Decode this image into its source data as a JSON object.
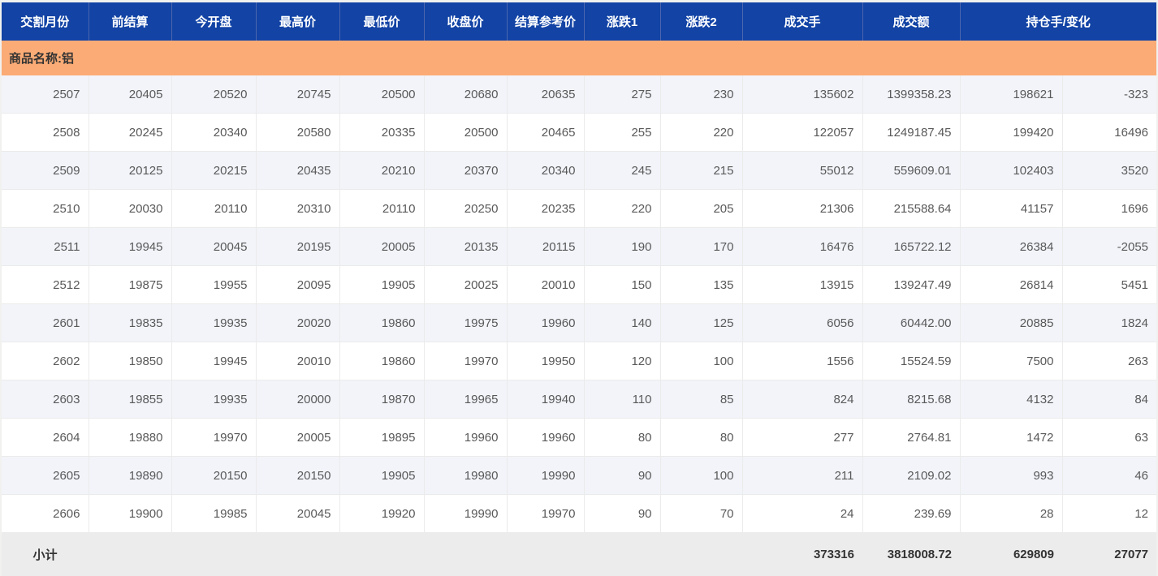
{
  "table": {
    "commodity_banner": "商品名称:铝",
    "headers": [
      "交割月份",
      "前结算",
      "今开盘",
      "最高价",
      "最低价",
      "收盘价",
      "结算参考价",
      "涨跌1",
      "涨跌2",
      "成交手",
      "成交额",
      "持仓手/变化"
    ],
    "rows": [
      [
        "2507",
        "20405",
        "20520",
        "20745",
        "20500",
        "20680",
        "20635",
        "275",
        "230",
        "135602",
        "1399358.23",
        "198621",
        "-323"
      ],
      [
        "2508",
        "20245",
        "20340",
        "20580",
        "20335",
        "20500",
        "20465",
        "255",
        "220",
        "122057",
        "1249187.45",
        "199420",
        "16496"
      ],
      [
        "2509",
        "20125",
        "20215",
        "20435",
        "20210",
        "20370",
        "20340",
        "245",
        "215",
        "55012",
        "559609.01",
        "102403",
        "3520"
      ],
      [
        "2510",
        "20030",
        "20110",
        "20310",
        "20110",
        "20250",
        "20235",
        "220",
        "205",
        "21306",
        "215588.64",
        "41157",
        "1696"
      ],
      [
        "2511",
        "19945",
        "20045",
        "20195",
        "20005",
        "20135",
        "20115",
        "190",
        "170",
        "16476",
        "165722.12",
        "26384",
        "-2055"
      ],
      [
        "2512",
        "19875",
        "19955",
        "20095",
        "19905",
        "20025",
        "20010",
        "150",
        "135",
        "13915",
        "139247.49",
        "26814",
        "5451"
      ],
      [
        "2601",
        "19835",
        "19935",
        "20020",
        "19860",
        "19975",
        "19960",
        "140",
        "125",
        "6056",
        "60442.00",
        "20885",
        "1824"
      ],
      [
        "2602",
        "19850",
        "19945",
        "20010",
        "19860",
        "19970",
        "19950",
        "120",
        "100",
        "1556",
        "15524.59",
        "7500",
        "263"
      ],
      [
        "2603",
        "19855",
        "19935",
        "20000",
        "19870",
        "19965",
        "19940",
        "110",
        "85",
        "824",
        "8215.68",
        "4132",
        "84"
      ],
      [
        "2604",
        "19880",
        "19970",
        "20005",
        "19895",
        "19960",
        "19960",
        "80",
        "80",
        "277",
        "2764.81",
        "1472",
        "63"
      ],
      [
        "2605",
        "19890",
        "20150",
        "20150",
        "19905",
        "19980",
        "19990",
        "90",
        "100",
        "211",
        "2109.02",
        "993",
        "46"
      ],
      [
        "2606",
        "19900",
        "19985",
        "20045",
        "19920",
        "19990",
        "19970",
        "90",
        "70",
        "24",
        "239.69",
        "28",
        "12"
      ]
    ],
    "subtotal": [
      "小计",
      "",
      "",
      "",
      "",
      "",
      "",
      "",
      "",
      "373316",
      "3818008.72",
      "629809",
      "27077"
    ]
  },
  "colors": {
    "frame_bg": "#f1f1ef",
    "header_bg": "#1243a5",
    "header_text": "#ffffff",
    "header_separator": "#4d66ae",
    "banner_bg": "#fbac76",
    "banner_text": "#333333",
    "row_bg": "#ffffff",
    "stripe_bg": "#f2f4f9",
    "grid_line": "#ebebeb",
    "body_text": "#595959",
    "subtotal_bg": "#ececec",
    "subtotal_text": "#333333"
  }
}
